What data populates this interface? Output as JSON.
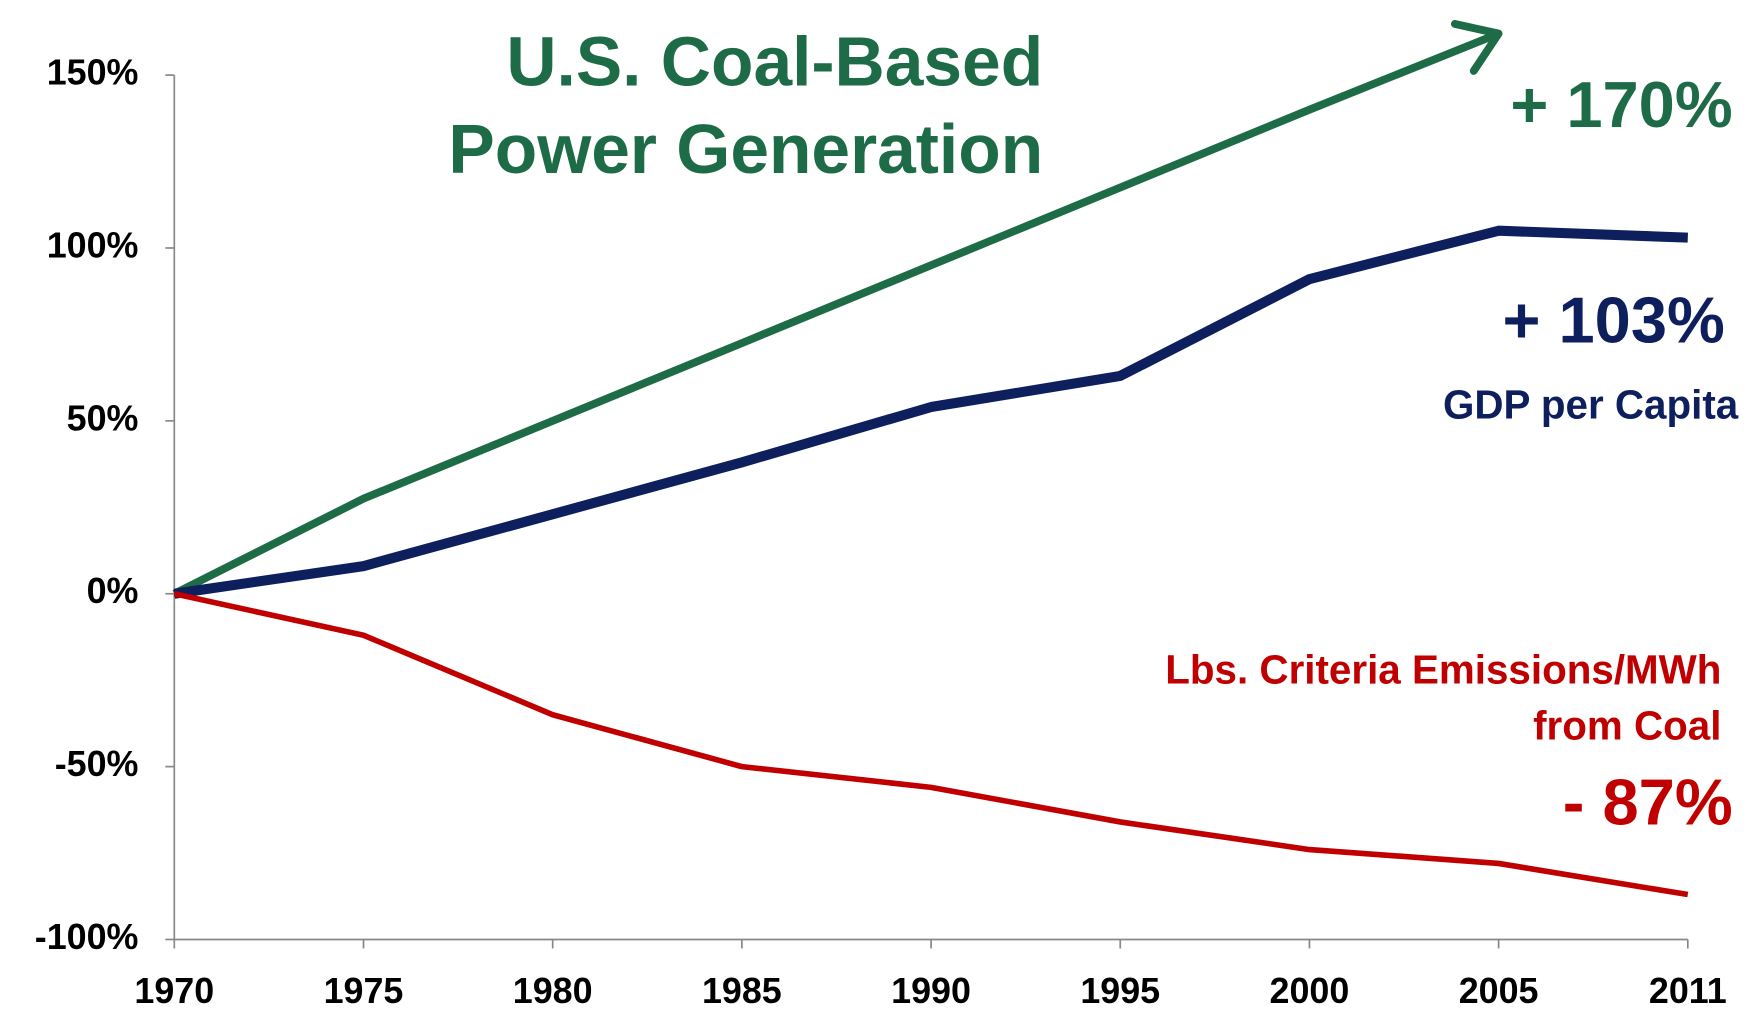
{
  "chart_data": {
    "type": "line",
    "title_lines": [
      "U.S. Coal-Based",
      "Power Generation"
    ],
    "categories": [
      "1970",
      "1975",
      "1980",
      "1985",
      "1990",
      "1995",
      "2000",
      "2005",
      "2011"
    ],
    "series": [
      {
        "color": "#1e6b47",
        "values": [
          0,
          27.5,
          50,
          72.5,
          95,
          117.5,
          140,
          162,
          null
        ],
        "arrow": true
      },
      {
        "color": "#0d1f5c",
        "values": [
          0,
          8,
          23,
          38,
          54,
          63,
          91,
          105,
          103
        ]
      },
      {
        "color": "#c00000",
        "values": [
          0,
          -12,
          -35,
          -50,
          -56,
          -66,
          -74,
          -78,
          -87
        ]
      }
    ],
    "ylim": [
      -100,
      150
    ],
    "yticks": [
      {
        "value": -100,
        "label": "-100%"
      },
      {
        "value": -50,
        "label": "-50%"
      },
      {
        "value": 0,
        "label": "0%"
      },
      {
        "value": 50,
        "label": "50%"
      },
      {
        "value": 100,
        "label": "100%"
      },
      {
        "value": 150,
        "label": "150%"
      }
    ],
    "annotations": [
      {
        "text": "+ 170%",
        "color": "#1e6b47"
      },
      {
        "text": "+ 103%",
        "color": "#0d1f5c"
      },
      {
        "text": "GDP per Capita",
        "color": "#0d1f5c"
      },
      {
        "text": "Lbs. Criteria Emissions/MWh",
        "color": "#c00000"
      },
      {
        "text": "from Coal",
        "color": "#c00000"
      },
      {
        "text": "- 87%",
        "color": "#c00000"
      }
    ]
  }
}
